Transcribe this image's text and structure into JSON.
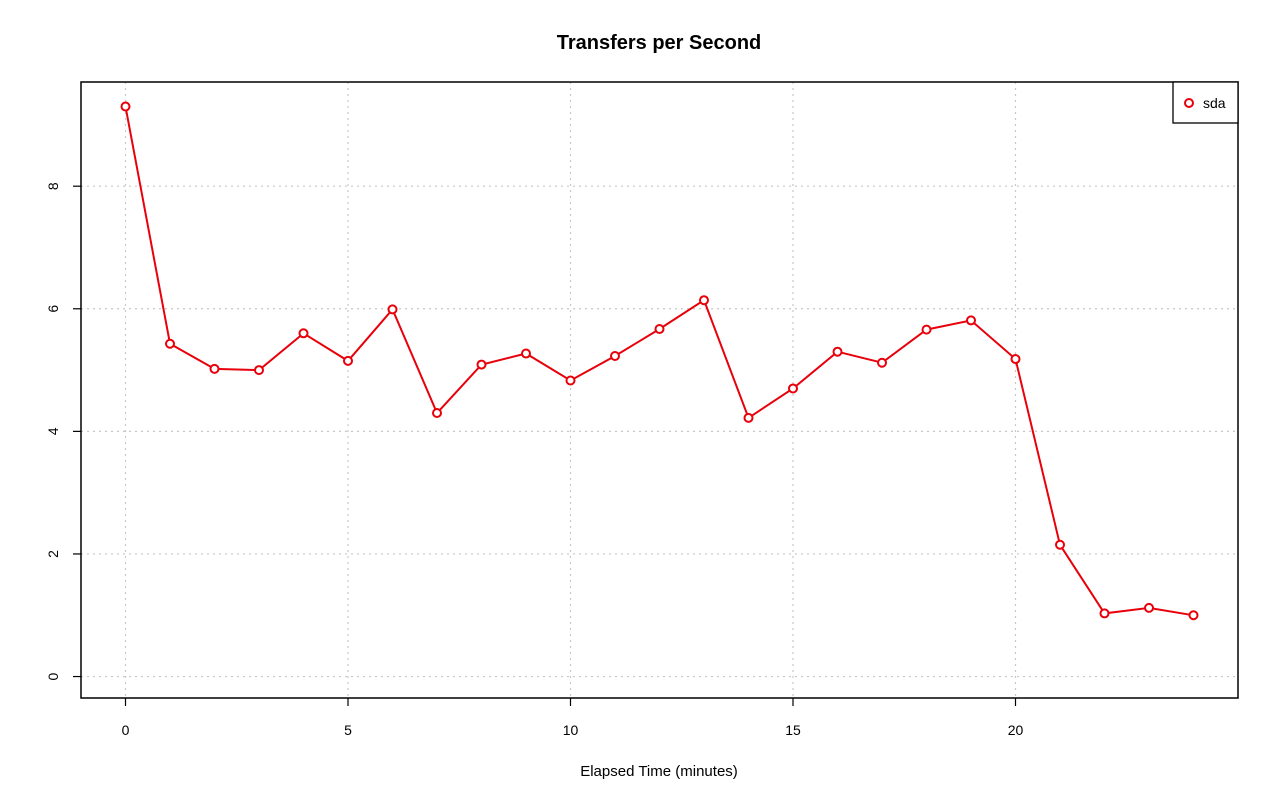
{
  "colors": {
    "series": "#e8000b",
    "grid": "#c8c8c8"
  },
  "chart_data": {
    "type": "line",
    "title": "Transfers per Second",
    "xlabel": "Elapsed Time (minutes)",
    "ylabel": "",
    "xlim": [
      -1,
      25
    ],
    "ylim": [
      -0.35,
      9.7
    ],
    "xticks": [
      0,
      5,
      10,
      15,
      20
    ],
    "yticks": [
      0,
      2,
      4,
      6,
      8
    ],
    "grid": true,
    "legend_position": "top-right",
    "series": [
      {
        "name": "sda",
        "x": [
          0,
          1,
          2,
          3,
          4,
          5,
          6,
          7,
          8,
          9,
          10,
          11,
          12,
          13,
          14,
          15,
          16,
          17,
          18,
          19,
          20,
          21,
          22,
          23,
          24
        ],
        "y": [
          9.3,
          5.43,
          5.02,
          5.0,
          5.6,
          5.15,
          5.99,
          4.3,
          5.09,
          5.27,
          4.83,
          5.23,
          5.67,
          6.14,
          4.22,
          4.7,
          5.3,
          5.12,
          5.66,
          5.81,
          5.18,
          2.15,
          1.03,
          1.12,
          1.0
        ]
      }
    ]
  }
}
